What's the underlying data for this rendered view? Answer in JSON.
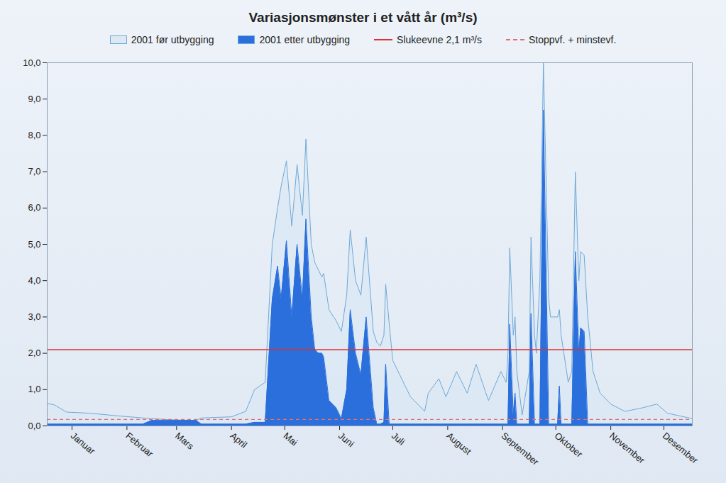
{
  "chart_data": {
    "type": "area",
    "title": "Variasjonsmønster i et vått år (m³/s)",
    "x": [
      1,
      5,
      12,
      25,
      40,
      55,
      60,
      70,
      85,
      88,
      105,
      113,
      118,
      124,
      128,
      131,
      133,
      136,
      139,
      142,
      145,
      147,
      150,
      152,
      154,
      156,
      157,
      160,
      164,
      167,
      170,
      172,
      175,
      178,
      181,
      185,
      187,
      189,
      191,
      192,
      194,
      196,
      206,
      214,
      216,
      222,
      226,
      232,
      238,
      243,
      250,
      257,
      260,
      261,
      262,
      264,
      265,
      266,
      269,
      273,
      274,
      276,
      277,
      279,
      281,
      284,
      285,
      289,
      290,
      291,
      295,
      297,
      299,
      301,
      302,
      304,
      306,
      309,
      313,
      319,
      327,
      337,
      345,
      351,
      365
    ],
    "series": [
      {
        "name": "2001 før utbygging",
        "color": "#dce9f5",
        "type": "area",
        "values": [
          0.62,
          0.58,
          0.38,
          0.35,
          0.28,
          0.22,
          0.2,
          0.17,
          0.15,
          0.22,
          0.25,
          0.4,
          1.0,
          1.2,
          5.0,
          6.0,
          6.6,
          7.3,
          5.5,
          7.2,
          5.8,
          7.9,
          5.0,
          4.5,
          4.3,
          4.1,
          4.2,
          3.2,
          2.9,
          2.6,
          3.6,
          5.4,
          4.0,
          3.6,
          5.2,
          2.6,
          2.3,
          2.2,
          2.5,
          3.9,
          2.8,
          1.8,
          0.8,
          0.4,
          0.9,
          1.3,
          0.8,
          1.5,
          0.9,
          1.7,
          0.7,
          1.5,
          1.2,
          2.0,
          4.9,
          2.5,
          3.0,
          1.5,
          0.3,
          1.5,
          5.2,
          2.5,
          2.0,
          4.0,
          10.0,
          3.5,
          3.0,
          3.0,
          3.2,
          2.5,
          1.2,
          1.5,
          7.0,
          4.0,
          4.8,
          4.7,
          3.0,
          1.5,
          0.9,
          0.6,
          0.4,
          0.5,
          0.6,
          0.35,
          0.2
        ]
      },
      {
        "name": "2001 etter utbygging",
        "color": "#2a6fdb",
        "type": "area",
        "values": [
          0.05,
          0.05,
          0.05,
          0.05,
          0.05,
          0.05,
          0.15,
          0.15,
          0.15,
          0.05,
          0.05,
          0.05,
          0.1,
          0.1,
          3.5,
          4.4,
          3.5,
          5.1,
          3.0,
          5.0,
          3.5,
          5.7,
          3.0,
          2.1,
          2.0,
          2.0,
          1.9,
          0.7,
          0.5,
          0.2,
          1.0,
          3.2,
          2.0,
          1.4,
          3.0,
          0.5,
          0.05,
          0.05,
          0.1,
          1.7,
          0.05,
          0.05,
          0.05,
          0.05,
          0.05,
          0.05,
          0.05,
          0.05,
          0.05,
          0.05,
          0.05,
          0.05,
          0.05,
          0.05,
          2.8,
          0.3,
          0.9,
          0.05,
          0.05,
          0.05,
          3.1,
          0.05,
          0.05,
          0.05,
          8.7,
          0.05,
          0.05,
          0.05,
          1.1,
          0.05,
          0.05,
          0.05,
          4.8,
          2.0,
          2.7,
          2.6,
          0.05,
          0.05,
          0.05,
          0.05,
          0.05,
          0.05,
          0.05,
          0.05,
          0.05
        ]
      }
    ],
    "reference_lines": [
      {
        "name": "Slukeevne 2,1 m³/s",
        "value": 2.1,
        "color": "#e03030",
        "line_style": "solid"
      },
      {
        "name": "Stoppvf. + minstevf.",
        "value": 0.18,
        "color": "#e07070",
        "line_style": "dashed"
      }
    ],
    "xlim": [
      1,
      365
    ],
    "xticks": [
      {
        "value": 15,
        "label": "Januar"
      },
      {
        "value": 46,
        "label": "Februar"
      },
      {
        "value": 74,
        "label": "Mars"
      },
      {
        "value": 105,
        "label": "April"
      },
      {
        "value": 135,
        "label": "Mai"
      },
      {
        "value": 166,
        "label": "Juni"
      },
      {
        "value": 196,
        "label": "Juli"
      },
      {
        "value": 227,
        "label": "August"
      },
      {
        "value": 258,
        "label": "September"
      },
      {
        "value": 288,
        "label": "Oktober"
      },
      {
        "value": 319,
        "label": "November"
      },
      {
        "value": 349,
        "label": "Desember"
      }
    ],
    "ylim": [
      0,
      10
    ],
    "yticks": [
      {
        "value": 0,
        "label": "0,0"
      },
      {
        "value": 1,
        "label": "1,0"
      },
      {
        "value": 2,
        "label": "2,0"
      },
      {
        "value": 3,
        "label": "3,0"
      },
      {
        "value": 4,
        "label": "4,0"
      },
      {
        "value": 5,
        "label": "5,0"
      },
      {
        "value": 6,
        "label": "6,0"
      },
      {
        "value": 7,
        "label": "7,0"
      },
      {
        "value": 8,
        "label": "8,0"
      },
      {
        "value": 9,
        "label": "9,0"
      },
      {
        "value": 10,
        "label": "10,0"
      }
    ],
    "grid": false
  }
}
